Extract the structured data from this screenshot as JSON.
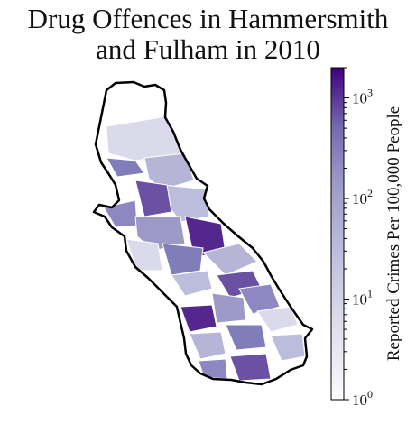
{
  "map": {
    "title_line1": "Drug Offences in Hammersmith",
    "title_line2": "and Fulham in 2010",
    "region": "Hammersmith and Fulham"
  },
  "colorbar": {
    "label": "Reported Crimes Per 100,000 People",
    "scale": "log",
    "range": [
      1,
      2000
    ],
    "colors": {
      "low": "#fcfbfd",
      "high": "#3f007d"
    },
    "ticks": [
      {
        "base": "10",
        "exp": "0",
        "value": 1
      },
      {
        "base": "10",
        "exp": "1",
        "value": 10
      },
      {
        "base": "10",
        "exp": "2",
        "value": 100
      },
      {
        "base": "10",
        "exp": "3",
        "value": 1000
      }
    ]
  }
}
